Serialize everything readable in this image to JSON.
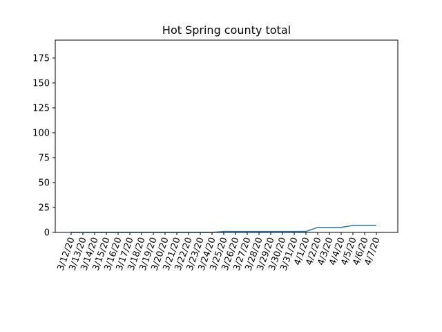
{
  "chart_data": {
    "type": "line",
    "title": "Hot Spring county total",
    "xlabel": "",
    "ylabel": "",
    "categories": [
      "3/12/20",
      "3/13/20",
      "3/14/20",
      "3/15/20",
      "3/16/20",
      "3/17/20",
      "3/18/20",
      "3/19/20",
      "3/20/20",
      "3/21/20",
      "3/22/20",
      "3/23/20",
      "3/24/20",
      "3/25/20",
      "3/26/20",
      "3/27/20",
      "3/28/20",
      "3/29/20",
      "3/30/20",
      "3/31/20",
      "4/1/20",
      "4/2/20",
      "4/3/20",
      "4/4/20",
      "4/5/20",
      "4/6/20",
      "4/7/20"
    ],
    "series": [
      {
        "values": [
          0,
          0,
          0,
          0,
          0,
          0,
          0,
          0,
          0,
          0,
          0,
          0,
          0,
          1,
          1,
          1,
          1,
          1,
          1,
          1,
          1,
          5,
          5,
          5,
          7,
          7,
          7
        ],
        "color": "#1f77b4"
      }
    ],
    "yticks": [
      0,
      25,
      50,
      75,
      100,
      125,
      150,
      175
    ],
    "ylim": [
      0,
      193
    ],
    "grid": false,
    "legend": "none"
  }
}
